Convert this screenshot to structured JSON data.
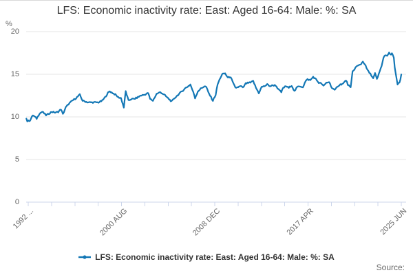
{
  "title": "LFS: Economic inactivity rate: East: Aged 16-64: Male: %: SA",
  "source_label": "Source:",
  "legend": {
    "label": "LFS: Economic inactivity rate: East: Aged 16-64: Male: %: SA",
    "marker_color": "#1377b5"
  },
  "colors": {
    "line": "#1377b5",
    "grid": "#e6e6e6",
    "axis": "#ccd6eb",
    "title_text": "#333333",
    "axis_text": "#666666"
  },
  "chart_data": {
    "type": "line",
    "title": "LFS: Economic inactivity rate: East: Aged 16-64: Male: %: SA",
    "ylabel_unit": "%",
    "ylim": [
      0,
      20
    ],
    "y_ticks": [
      0,
      5,
      10,
      15,
      20
    ],
    "x_tick_labels": [
      "1992 ...",
      "2000 AUG",
      "2008 DEC",
      "2017 APR",
      "2025 JUN"
    ],
    "x_minor_ticks_total": 17,
    "x_labeled_tick_indices": [
      0,
      4,
      8,
      12,
      16
    ],
    "x_start": "1992 FEB",
    "x_end": "2025 JUN",
    "frequency": "monthly",
    "grid": "horizontal-only",
    "legend_position": "bottom-center",
    "series": [
      {
        "name": "LFS: Economic inactivity rate: East: Aged 16-64: Male: %: SA",
        "color": "#1377b5",
        "anchor_format": [
          "months_after_1992_APR",
          "percent"
        ],
        "anchors": [
          [
            -2,
            9.8
          ],
          [
            -1,
            9.5
          ],
          [
            2,
            9.6
          ],
          [
            5,
            10.2
          ],
          [
            9,
            9.8
          ],
          [
            12,
            10.4
          ],
          [
            15,
            10.6
          ],
          [
            19,
            10.2
          ],
          [
            21,
            10.3
          ],
          [
            25,
            10.6
          ],
          [
            29,
            10.5
          ],
          [
            32,
            10.6
          ],
          [
            35,
            10.9
          ],
          [
            37,
            10.3
          ],
          [
            40,
            11.1
          ],
          [
            43,
            11.5
          ],
          [
            47,
            11.9
          ],
          [
            51,
            12.2
          ],
          [
            55,
            12.6
          ],
          [
            58,
            11.9
          ],
          [
            61,
            11.8
          ],
          [
            64,
            11.7
          ],
          [
            70,
            11.7
          ],
          [
            75,
            11.7
          ],
          [
            79,
            11.9
          ],
          [
            82,
            12.3
          ],
          [
            85,
            12.8
          ],
          [
            87,
            13.0
          ],
          [
            90,
            12.8
          ],
          [
            93,
            12.6
          ],
          [
            96,
            12.3
          ],
          [
            99,
            12.2
          ],
          [
            102,
            11.1
          ],
          [
            104,
            13.0
          ],
          [
            107,
            11.9
          ],
          [
            110,
            12.1
          ],
          [
            113,
            12.1
          ],
          [
            117,
            12.3
          ],
          [
            120,
            12.5
          ],
          [
            124,
            12.6
          ],
          [
            128,
            12.8
          ],
          [
            130,
            12.1
          ],
          [
            133,
            11.9
          ],
          [
            137,
            12.7
          ],
          [
            141,
            12.9
          ],
          [
            145,
            12.6
          ],
          [
            150,
            12.1
          ],
          [
            153,
            11.8
          ],
          [
            157,
            12.3
          ],
          [
            161,
            12.7
          ],
          [
            164,
            13.0
          ],
          [
            168,
            13.4
          ],
          [
            172,
            13.7
          ],
          [
            173,
            13.8
          ],
          [
            177,
            12.6
          ],
          [
            178,
            12.2
          ],
          [
            181,
            13.0
          ],
          [
            184,
            13.3
          ],
          [
            188,
            13.6
          ],
          [
            190,
            13.5
          ],
          [
            192,
            12.9
          ],
          [
            195,
            12.3
          ],
          [
            197,
            11.9
          ],
          [
            200,
            12.6
          ],
          [
            202,
            13.8
          ],
          [
            205,
            14.6
          ],
          [
            207,
            15.0
          ],
          [
            210,
            15.1
          ],
          [
            213,
            14.6
          ],
          [
            216,
            14.7
          ],
          [
            218,
            14.1
          ],
          [
            221,
            13.4
          ],
          [
            224,
            13.5
          ],
          [
            227,
            13.6
          ],
          [
            229,
            13.4
          ],
          [
            232,
            13.9
          ],
          [
            235,
            14.0
          ],
          [
            237,
            14.0
          ],
          [
            240,
            14.2
          ],
          [
            243,
            13.4
          ],
          [
            246,
            12.8
          ],
          [
            249,
            13.5
          ],
          [
            252,
            13.6
          ],
          [
            255,
            13.8
          ],
          [
            258,
            13.6
          ],
          [
            261,
            13.7
          ],
          [
            264,
            13.7
          ],
          [
            267,
            13.2
          ],
          [
            270,
            12.9
          ],
          [
            272,
            13.4
          ],
          [
            275,
            13.6
          ],
          [
            278,
            13.4
          ],
          [
            281,
            13.7
          ],
          [
            284,
            13.0
          ],
          [
            287,
            13.5
          ],
          [
            290,
            13.6
          ],
          [
            293,
            13.5
          ],
          [
            296,
            14.2
          ],
          [
            298,
            14.4
          ],
          [
            301,
            14.3
          ],
          [
            304,
            14.7
          ],
          [
            307,
            14.4
          ],
          [
            310,
            14.0
          ],
          [
            313,
            13.9
          ],
          [
            315,
            13.6
          ],
          [
            318,
            14.0
          ],
          [
            321,
            14.1
          ],
          [
            324,
            13.4
          ],
          [
            327,
            13.1
          ],
          [
            330,
            13.6
          ],
          [
            333,
            13.8
          ],
          [
            336,
            13.9
          ],
          [
            339,
            14.3
          ],
          [
            341,
            13.8
          ],
          [
            344,
            13.4
          ],
          [
            346,
            15.3
          ],
          [
            348,
            15.6
          ],
          [
            350,
            15.9
          ],
          [
            352,
            16.0
          ],
          [
            355,
            16.2
          ],
          [
            357,
            16.5
          ],
          [
            359,
            16.2
          ],
          [
            361,
            15.7
          ],
          [
            363,
            15.3
          ],
          [
            366,
            14.9
          ],
          [
            368,
            14.5
          ],
          [
            370,
            15.1
          ],
          [
            372,
            14.4
          ],
          [
            374,
            15.0
          ],
          [
            377,
            16.0
          ],
          [
            379,
            16.9
          ],
          [
            381,
            17.3
          ],
          [
            383,
            17.1
          ],
          [
            385,
            17.5
          ],
          [
            387,
            17.3
          ],
          [
            388,
            17.4
          ],
          [
            390,
            17.0
          ],
          [
            391,
            15.8
          ],
          [
            393,
            14.4
          ],
          [
            394,
            13.8
          ],
          [
            396,
            14.0
          ],
          [
            397,
            14.4
          ],
          [
            398,
            14.9
          ]
        ]
      }
    ]
  }
}
